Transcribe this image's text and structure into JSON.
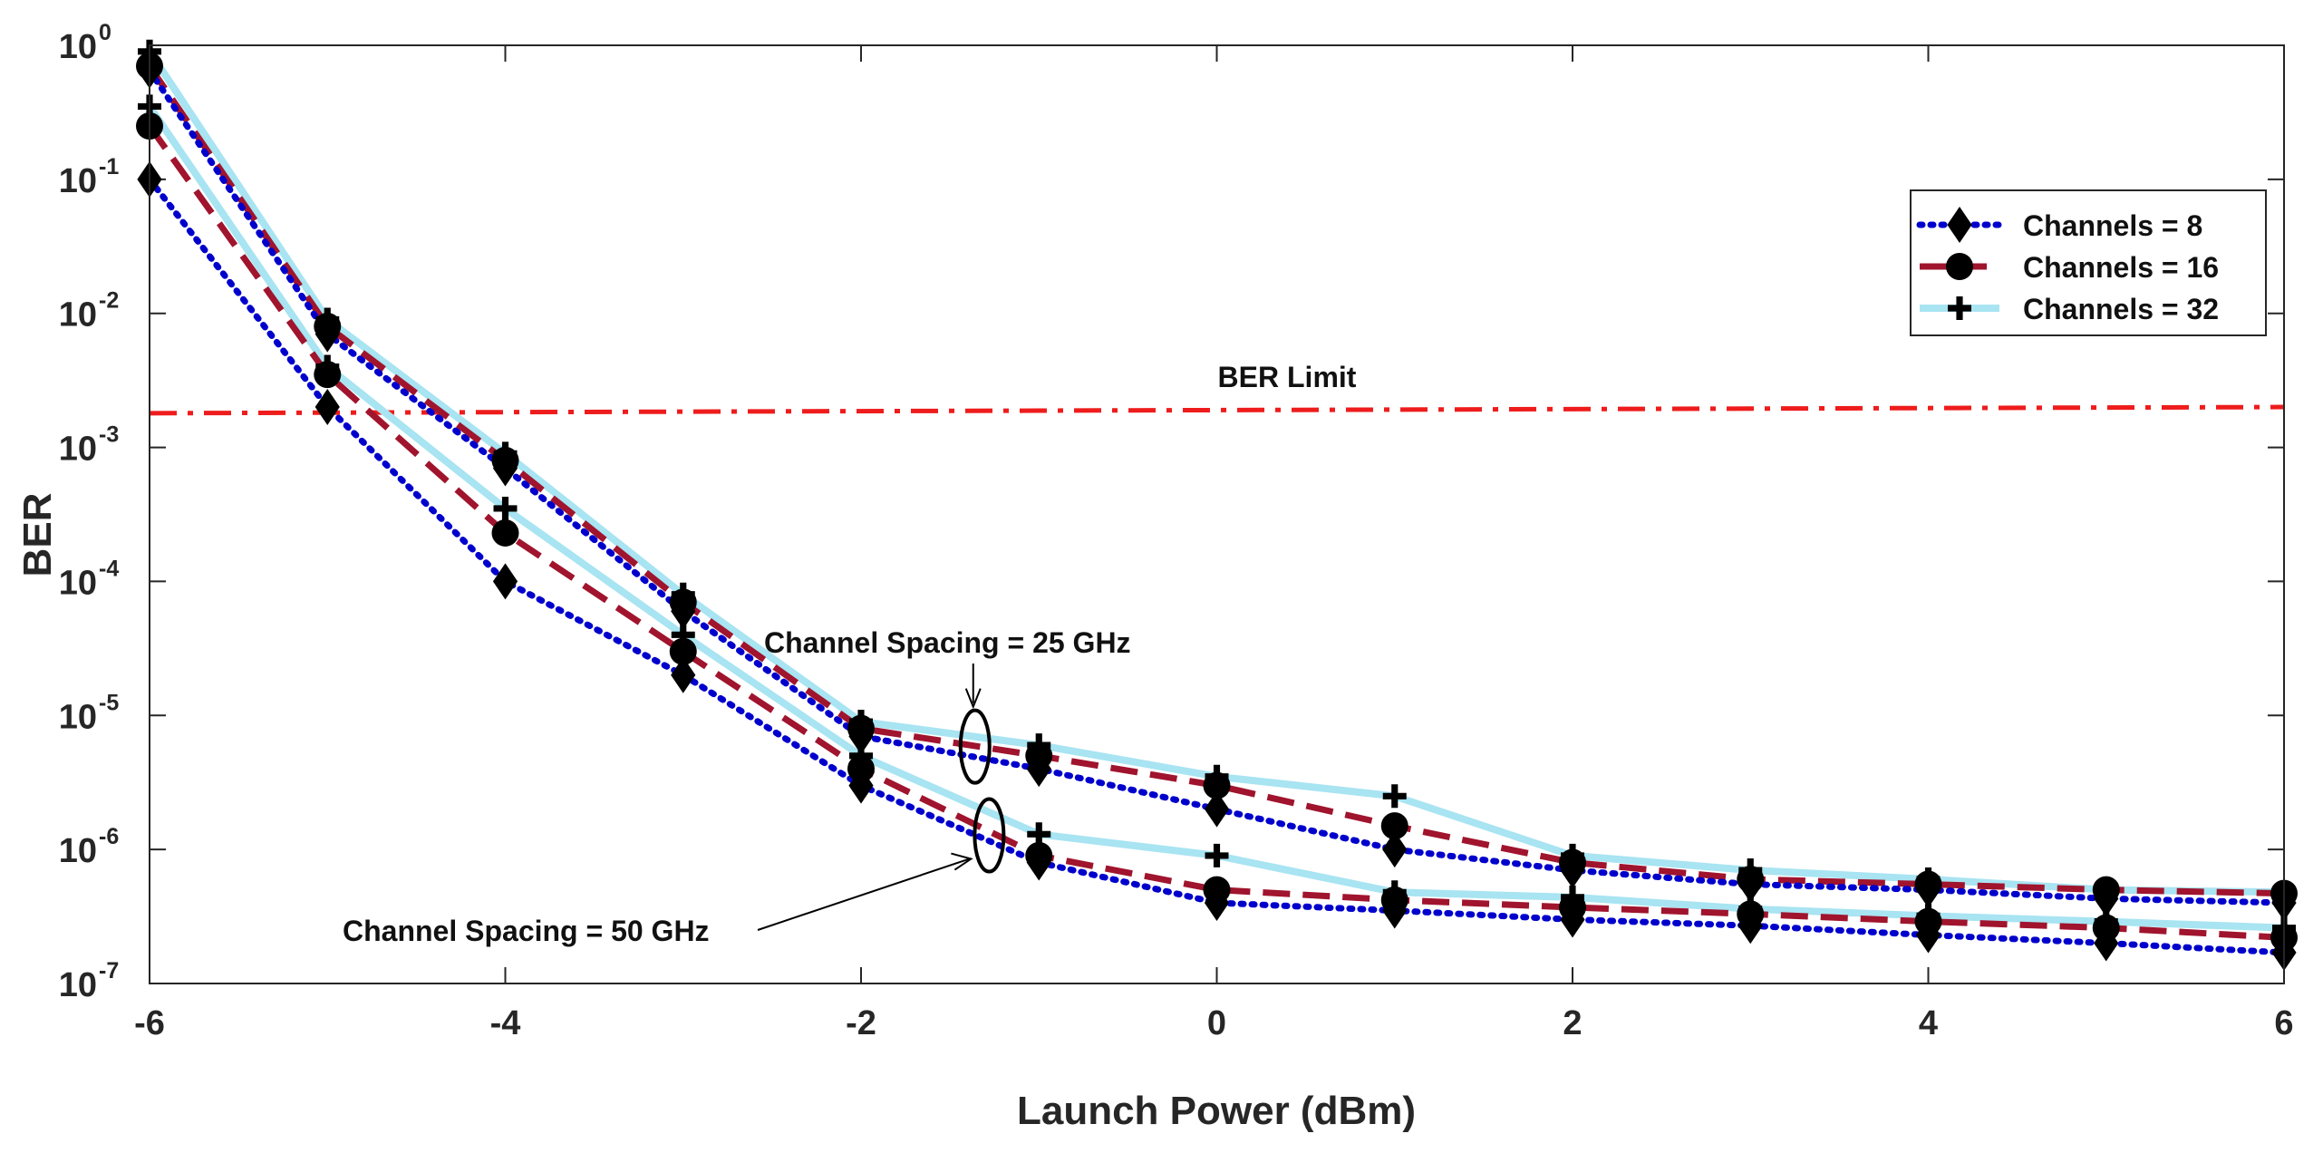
{
  "chart_data": {
    "type": "line",
    "title": "",
    "xlabel": "Launch Power (dBm)",
    "ylabel": "BER",
    "xlim": [
      -6,
      6
    ],
    "ylim": [
      1e-07,
      1
    ],
    "yscale": "log",
    "x_ticks": [
      "-6",
      "-4",
      "-2",
      "0",
      "2",
      "4",
      "6"
    ],
    "y_ticks": [
      {
        "base": "10",
        "exp": "0"
      },
      {
        "base": "10",
        "exp": "-1"
      },
      {
        "base": "10",
        "exp": "-2"
      },
      {
        "base": "10",
        "exp": "-3"
      },
      {
        "base": "10",
        "exp": "-4"
      },
      {
        "base": "10",
        "exp": "-5"
      },
      {
        "base": "10",
        "exp": "-6"
      },
      {
        "base": "10",
        "exp": "-7"
      }
    ],
    "x": [
      -6,
      -5,
      -4,
      -3,
      -2,
      -1,
      0,
      1,
      2,
      3,
      4,
      5,
      6
    ],
    "series": [
      {
        "name": "Channels = 8",
        "group": "Channel Spacing = 25 GHz",
        "color": "#0000cd",
        "style": "dotted",
        "marker": "diamond",
        "values": [
          0.65,
          0.007,
          0.0007,
          6e-05,
          7e-06,
          4e-06,
          2e-06,
          1e-06,
          7e-07,
          5.5e-07,
          5e-07,
          4.3e-07,
          4e-07
        ]
      },
      {
        "name": "Channels = 16",
        "group": "Channel Spacing = 25 GHz",
        "color": "#a0142d",
        "style": "dashed",
        "marker": "circle",
        "values": [
          0.7,
          0.008,
          0.0008,
          7e-05,
          8e-06,
          5e-06,
          3e-06,
          1.5e-06,
          8e-07,
          6e-07,
          5.5e-07,
          5e-07,
          4.7e-07
        ]
      },
      {
        "name": "Channels = 32",
        "group": "Channel Spacing = 25 GHz",
        "color": "#a8e4f2",
        "style": "solid",
        "marker": "plus",
        "values": [
          0.9,
          0.009,
          0.0009,
          8e-05,
          9e-06,
          6e-06,
          3.5e-06,
          2.5e-06,
          9e-07,
          7e-07,
          6e-07,
          5e-07,
          4.8e-07
        ]
      },
      {
        "name": "Channels = 8",
        "group": "Channel Spacing = 50 GHz",
        "color": "#0000cd",
        "style": "dotted",
        "marker": "diamond",
        "values": [
          0.1,
          0.002,
          0.0001,
          2e-05,
          3e-06,
          8e-07,
          4e-07,
          3.5e-07,
          3e-07,
          2.7e-07,
          2.3e-07,
          2e-07,
          1.7e-07
        ]
      },
      {
        "name": "Channels = 16",
        "group": "Channel Spacing = 50 GHz",
        "color": "#a0142d",
        "style": "dashed",
        "marker": "circle",
        "values": [
          0.25,
          0.0035,
          0.00023,
          3e-05,
          4e-06,
          9e-07,
          5e-07,
          4.2e-07,
          3.7e-07,
          3.3e-07,
          2.9e-07,
          2.6e-07,
          2.2e-07
        ]
      },
      {
        "name": "Channels = 32",
        "group": "Channel Spacing = 50 GHz",
        "color": "#a8e4f2",
        "style": "solid",
        "marker": "plus",
        "values": [
          0.35,
          0.004,
          0.00035,
          4e-05,
          5e-06,
          1.3e-06,
          9e-07,
          4.8e-07,
          4.4e-07,
          3.6e-07,
          3.2e-07,
          2.9e-07,
          2.6e-07
        ]
      }
    ],
    "reference_line": {
      "label": "BER Limit",
      "color": "#ee1c1c",
      "style": "dashdot",
      "y_start": 0.0018,
      "y_end": 0.002
    },
    "annotations": [
      {
        "text": "Channel Spacing = 25 GHz",
        "x": -1.4,
        "y": 5.5e-06
      },
      {
        "text": "Channel Spacing = 50 GHz",
        "x": -1.3,
        "y": 1.4e-06
      }
    ],
    "legend": {
      "position": "top-right",
      "entries": [
        "Channels = 8",
        "Channels = 16",
        "Channels = 32"
      ]
    }
  }
}
